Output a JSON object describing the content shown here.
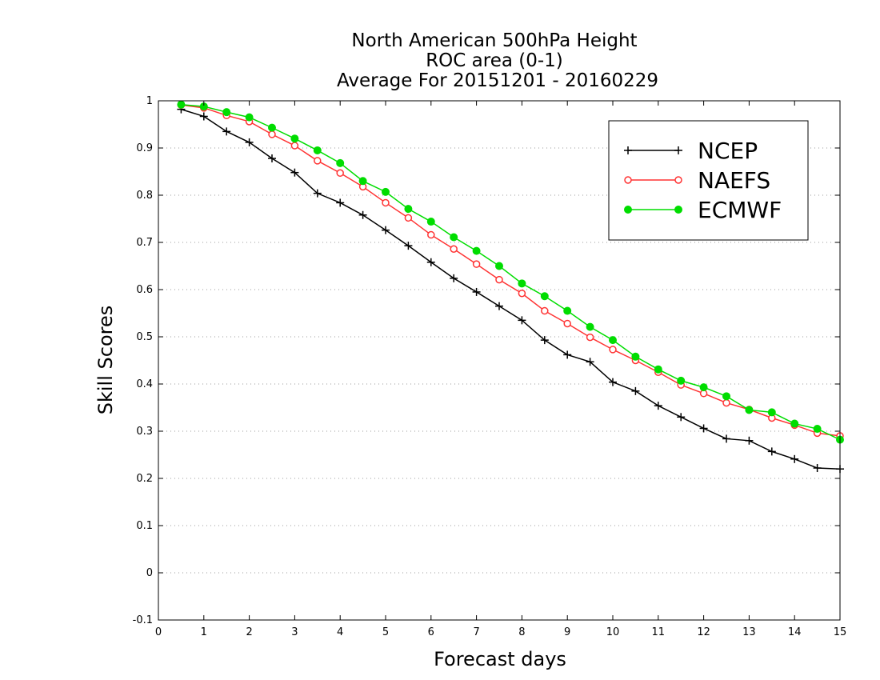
{
  "chart_data": {
    "type": "line",
    "title_lines": [
      "North American 500hPa Height",
      "ROC area (0-1)",
      "Average For 20151201 - 20160229"
    ],
    "xlabel": "Forecast days",
    "ylabel": "Skill Scores",
    "xlim": [
      0,
      15
    ],
    "ylim": [
      -0.1,
      1
    ],
    "x_ticks": [
      "0",
      "1",
      "2",
      "3",
      "4",
      "5",
      "6",
      "7",
      "8",
      "9",
      "10",
      "11",
      "12",
      "13",
      "14",
      "15"
    ],
    "y_ticks": [
      "-0.1",
      "0",
      "0.1",
      "0.2",
      "0.3",
      "0.4",
      "0.5",
      "0.6",
      "0.7",
      "0.8",
      "0.9",
      "1"
    ],
    "grid": "horizontal dotted",
    "legend_position": "top-right",
    "x": [
      0.5,
      1,
      1.5,
      2,
      2.5,
      3,
      3.5,
      4,
      4.5,
      5,
      5.5,
      6,
      6.5,
      7,
      7.5,
      8,
      8.5,
      9,
      9.5,
      10,
      10.5,
      11,
      11.5,
      12,
      12.5,
      13,
      13.5,
      14,
      14.5,
      15
    ],
    "series": [
      {
        "name": "NCEP",
        "color": "#000000",
        "marker": "plus",
        "values": [
          0.982,
          0.967,
          0.935,
          0.912,
          0.878,
          0.848,
          0.804,
          0.784,
          0.758,
          0.726,
          0.693,
          0.658,
          0.624,
          0.595,
          0.565,
          0.535,
          0.493,
          0.462,
          0.447,
          0.404,
          0.385,
          0.354,
          0.33,
          0.306,
          0.284,
          0.28,
          0.257,
          0.241,
          0.222,
          0.22
        ]
      },
      {
        "name": "NAEFS",
        "color": "#ff3333",
        "marker": "open-circle",
        "values": [
          0.991,
          0.985,
          0.969,
          0.956,
          0.929,
          0.905,
          0.873,
          0.847,
          0.818,
          0.784,
          0.752,
          0.716,
          0.686,
          0.654,
          0.621,
          0.592,
          0.555,
          0.528,
          0.499,
          0.473,
          0.45,
          0.425,
          0.398,
          0.38,
          0.36,
          0.346,
          0.328,
          0.313,
          0.296,
          0.29
        ]
      },
      {
        "name": "ECMWF",
        "color": "#00dd00",
        "marker": "filled-circle",
        "values": [
          0.992,
          0.988,
          0.976,
          0.965,
          0.943,
          0.92,
          0.895,
          0.868,
          0.83,
          0.807,
          0.771,
          0.744,
          0.711,
          0.682,
          0.65,
          0.613,
          0.586,
          0.555,
          0.521,
          0.493,
          0.458,
          0.431,
          0.407,
          0.393,
          0.374,
          0.345,
          0.34,
          0.316,
          0.305,
          0.282
        ]
      }
    ]
  }
}
